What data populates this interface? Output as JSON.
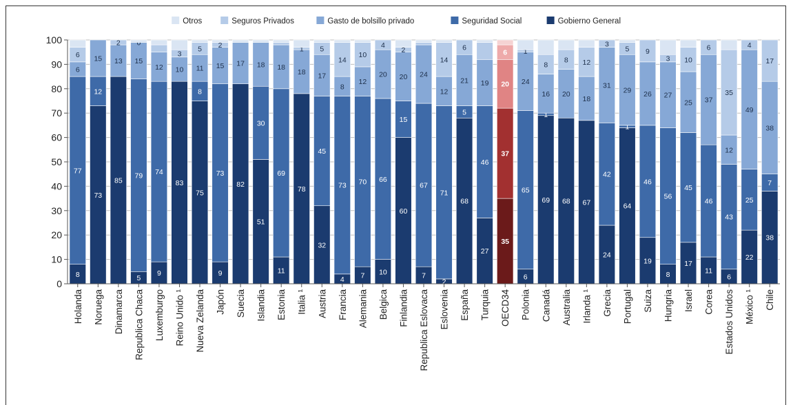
{
  "chart_data": {
    "type": "bar",
    "stacked": true,
    "ylim": [
      0,
      100
    ],
    "yticks": [
      0,
      10,
      20,
      30,
      40,
      50,
      60,
      70,
      80,
      90,
      100
    ],
    "grid": true,
    "legend_position": "top",
    "categories": [
      "Holanda",
      "Noruega",
      "Dinamarca",
      "Republica Chaca",
      "Luxemburgo",
      "Reino Unido ¹",
      "Nueva Zelanda",
      "Japón",
      "Suecia",
      "Islandia",
      "Estonia",
      "Italia ¹",
      "Austria",
      "Francia",
      "Alemania",
      "Belgica",
      "Finlandia",
      "Republica Eslovaca",
      "Eslovenia",
      "España",
      "Turquia",
      "OECD34",
      "Polonia",
      "Canadá",
      "Australia",
      "Irlanda ¹",
      "Grecia",
      "Portugal",
      "Suiza",
      "Hungria",
      "Israel",
      "Corea",
      "Estados Unidos",
      "México ¹",
      "Chile"
    ],
    "highlight_category": "OECD34",
    "series": [
      {
        "name": "Gobierno General",
        "color": "#1b3b6f",
        "highlight_color": "#6b1a1a",
        "values": [
          8,
          73,
          85,
          5,
          9,
          83,
          75,
          9,
          82,
          51,
          11,
          78,
          32,
          4,
          7,
          10,
          60,
          7,
          2,
          68,
          27,
          35,
          6,
          69,
          68,
          67,
          24,
          64,
          19,
          8,
          17,
          11,
          6,
          22,
          38
        ],
        "labels": [
          "8",
          "73",
          "85",
          "5",
          "9",
          "83",
          "75",
          "9",
          "82",
          "51",
          "11",
          "78",
          "32",
          "4",
          "7",
          "10",
          "60",
          "7",
          "2",
          "68",
          "27",
          "35",
          "6",
          "69",
          "68",
          "67",
          "24",
          "64",
          "19",
          "8",
          "17",
          "11",
          "6",
          "22",
          "38"
        ]
      },
      {
        "name": "Seguridad Social",
        "color": "#3e6aa8",
        "highlight_color": "#a23030",
        "values": [
          77,
          12,
          0,
          79,
          74,
          0,
          8,
          73,
          0,
          30,
          69,
          0,
          45,
          73,
          70,
          66,
          15,
          67,
          71,
          5,
          46,
          37,
          65,
          1,
          0,
          0,
          42,
          1,
          46,
          56,
          45,
          46,
          43,
          25,
          7
        ],
        "labels": [
          "77",
          "12",
          "",
          "79",
          "74",
          "",
          "8",
          "73",
          "",
          "30",
          "69",
          "",
          "45",
          "73",
          "70",
          "66",
          "15",
          "67",
          "71",
          "5",
          "46",
          "37",
          "65",
          "1",
          "",
          "",
          "42",
          "1",
          "46",
          "56",
          "45",
          "46",
          "43",
          "25",
          "7"
        ]
      },
      {
        "name": "Gasto de bolsillo privado",
        "color": "#86a8d6",
        "highlight_color": "#e08484",
        "values": [
          6,
          15,
          13,
          15,
          12,
          10,
          11,
          15,
          17,
          18,
          18,
          18,
          17,
          8,
          12,
          20,
          20,
          24,
          12,
          21,
          19,
          20,
          24,
          16,
          20,
          18,
          31,
          29,
          26,
          27,
          25,
          37,
          12,
          49,
          38
        ],
        "labels": [
          "6",
          "15",
          "13",
          "15",
          "12",
          "10",
          "11",
          "15",
          "17",
          "18",
          "18",
          "18",
          "17",
          "8",
          "12",
          "20",
          "20",
          "24",
          "12",
          "21",
          "19",
          "20",
          "24",
          "16",
          "20",
          "18",
          "31",
          "29",
          "26",
          "27",
          "25",
          "37",
          "12",
          "49",
          "38"
        ]
      },
      {
        "name": "Seguros Privados",
        "color": "#b5cbe8",
        "highlight_color": "#eeaaaa",
        "values": [
          6,
          0,
          2,
          0,
          3,
          3,
          5,
          2,
          0,
          0,
          1,
          1,
          5,
          14,
          10,
          4,
          2,
          1,
          14,
          6,
          7,
          6,
          1,
          8,
          8,
          12,
          3,
          5,
          9,
          3,
          10,
          6,
          35,
          4,
          17
        ],
        "labels": [
          "6",
          "",
          "2",
          "0",
          "",
          "3",
          "5",
          "2",
          "",
          "",
          "",
          "1",
          "5",
          "14",
          "10",
          "4",
          "2",
          "",
          "14",
          "6",
          "",
          "6",
          "1",
          "8",
          "8",
          "12",
          "3",
          "5",
          "9",
          "3",
          "10",
          "6",
          "35",
          "4",
          "17"
        ]
      },
      {
        "name": "Otros",
        "color": "#dae5f3",
        "highlight_color": "#f5d3d3",
        "values": [
          3,
          0,
          0,
          1,
          2,
          4,
          1,
          1,
          1,
          1,
          1,
          3,
          1,
          1,
          1,
          0,
          3,
          1,
          1,
          0,
          1,
          2,
          4,
          6,
          4,
          3,
          0,
          1,
          0,
          6,
          3,
          0,
          4,
          0,
          0
        ],
        "labels": [
          "",
          "",
          "",
          "",
          "",
          "",
          "",
          "",
          "",
          "",
          "",
          "",
          "",
          "",
          "",
          "",
          "",
          "",
          "",
          "",
          "",
          "",
          "",
          "",
          "",
          "",
          "",
          "",
          "",
          "",
          "",
          "",
          "",
          "",
          ""
        ]
      }
    ]
  }
}
